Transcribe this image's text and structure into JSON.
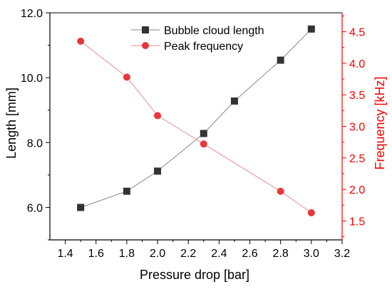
{
  "chart_data": {
    "type": "line",
    "xlabel": "Pressure drop [bar]",
    "ylabel_left": "Length [mm]",
    "ylabel_right": "Frequency [kHz]",
    "xlim": [
      1.3,
      3.2
    ],
    "ylim_left": [
      5.0,
      12.0
    ],
    "ylim_right": [
      1.2,
      4.8
    ],
    "x_ticks": [
      "1.4",
      "1.6",
      "1.8",
      "2.0",
      "2.2",
      "2.4",
      "2.6",
      "2.8",
      "3.0",
      "3.2"
    ],
    "y_ticks_left": [
      "6.0",
      "8.0",
      "10.0",
      "12.0"
    ],
    "y_ticks_right": [
      "1.5",
      "2.0",
      "2.5",
      "3.0",
      "3.5",
      "4.0",
      "4.5"
    ],
    "legend_position": "top-right",
    "series": [
      {
        "name": "Bubble cloud length",
        "axis": "left",
        "marker": "square",
        "color": "#333333",
        "line_color": "#888888",
        "x": [
          1.5,
          1.8,
          2.0,
          2.3,
          2.5,
          2.8,
          3.0
        ],
        "values": [
          6.0,
          6.5,
          7.12,
          8.28,
          9.28,
          10.54,
          11.5
        ]
      },
      {
        "name": "Peak frequency",
        "axis": "right",
        "marker": "circle",
        "color": "#e8363c",
        "line_color": "#f08a8e",
        "x": [
          1.5,
          1.8,
          2.0,
          2.3,
          2.8,
          3.0
        ],
        "values": [
          4.35,
          3.78,
          3.17,
          2.72,
          1.97,
          1.63
        ]
      }
    ]
  },
  "colors": {
    "left_axis": "#000000",
    "right_axis": "#ff0000"
  }
}
